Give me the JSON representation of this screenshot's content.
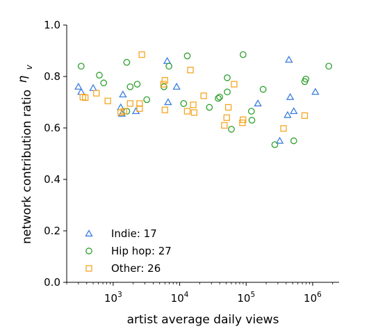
{
  "chart_data": {
    "type": "scatter",
    "xlabel": "artist average daily views",
    "ylabel": "network contribution ratio",
    "ylabel_symbol": "η",
    "ylabel_subscript": "v",
    "x_scale": "log",
    "xlim": [
      200,
      2500000
    ],
    "ylim": [
      0,
      1.0
    ],
    "x_ticks": [
      {
        "value": 1000,
        "base": "10",
        "exp": "3"
      },
      {
        "value": 10000,
        "base": "10",
        "exp": "4"
      },
      {
        "value": 100000,
        "base": "10",
        "exp": "5"
      },
      {
        "value": 1000000,
        "base": "10",
        "exp": "6"
      }
    ],
    "y_ticks": [
      {
        "value": 0.0,
        "label": "0.0"
      },
      {
        "value": 0.2,
        "label": "0.2"
      },
      {
        "value": 0.4,
        "label": "0.4"
      },
      {
        "value": 0.6,
        "label": "0.6"
      },
      {
        "value": 0.8,
        "label": "0.8"
      },
      {
        "value": 1.0,
        "label": "1.0"
      }
    ],
    "grid": false,
    "legend_position": "bottom-left",
    "series": [
      {
        "name": "Indie: 17",
        "marker": "triangle",
        "color": "#3b7ddd",
        "points": [
          {
            "x": 300,
            "y": 0.76
          },
          {
            "x": 330,
            "y": 0.74
          },
          {
            "x": 500,
            "y": 0.755
          },
          {
            "x": 1300,
            "y": 0.68
          },
          {
            "x": 1350,
            "y": 0.655
          },
          {
            "x": 1400,
            "y": 0.73
          },
          {
            "x": 2200,
            "y": 0.665
          },
          {
            "x": 6500,
            "y": 0.86
          },
          {
            "x": 6700,
            "y": 0.7
          },
          {
            "x": 9000,
            "y": 0.76
          },
          {
            "x": 150000,
            "y": 0.695
          },
          {
            "x": 320000,
            "y": 0.55
          },
          {
            "x": 420000,
            "y": 0.65
          },
          {
            "x": 440000,
            "y": 0.865
          },
          {
            "x": 460000,
            "y": 0.72
          },
          {
            "x": 520000,
            "y": 0.665
          },
          {
            "x": 1100000,
            "y": 0.74
          }
        ]
      },
      {
        "name": "Hip hop: 27",
        "marker": "circle",
        "color": "#2ca02c",
        "points": [
          {
            "x": 330,
            "y": 0.84
          },
          {
            "x": 620,
            "y": 0.805
          },
          {
            "x": 720,
            "y": 0.775
          },
          {
            "x": 1600,
            "y": 0.855
          },
          {
            "x": 1600,
            "y": 0.665
          },
          {
            "x": 1800,
            "y": 0.76
          },
          {
            "x": 2300,
            "y": 0.77
          },
          {
            "x": 3200,
            "y": 0.71
          },
          {
            "x": 5800,
            "y": 0.76
          },
          {
            "x": 6900,
            "y": 0.84
          },
          {
            "x": 11500,
            "y": 0.695
          },
          {
            "x": 13000,
            "y": 0.88
          },
          {
            "x": 28000,
            "y": 0.68
          },
          {
            "x": 38000,
            "y": 0.715
          },
          {
            "x": 40000,
            "y": 0.72
          },
          {
            "x": 52000,
            "y": 0.795
          },
          {
            "x": 52000,
            "y": 0.74
          },
          {
            "x": 60000,
            "y": 0.595
          },
          {
            "x": 90000,
            "y": 0.885
          },
          {
            "x": 120000,
            "y": 0.665
          },
          {
            "x": 122000,
            "y": 0.63
          },
          {
            "x": 180000,
            "y": 0.75
          },
          {
            "x": 270000,
            "y": 0.535
          },
          {
            "x": 520000,
            "y": 0.55
          },
          {
            "x": 760000,
            "y": 0.78
          },
          {
            "x": 790000,
            "y": 0.79
          },
          {
            "x": 1750000,
            "y": 0.84
          }
        ]
      },
      {
        "name": "Other: 26",
        "marker": "square",
        "color": "#f5a623",
        "points": [
          {
            "x": 350,
            "y": 0.72
          },
          {
            "x": 380,
            "y": 0.718
          },
          {
            "x": 560,
            "y": 0.735
          },
          {
            "x": 830,
            "y": 0.705
          },
          {
            "x": 1300,
            "y": 0.66
          },
          {
            "x": 1450,
            "y": 0.665
          },
          {
            "x": 1800,
            "y": 0.695
          },
          {
            "x": 2500,
            "y": 0.695
          },
          {
            "x": 2500,
            "y": 0.675
          },
          {
            "x": 2700,
            "y": 0.885
          },
          {
            "x": 5700,
            "y": 0.77
          },
          {
            "x": 6000,
            "y": 0.785
          },
          {
            "x": 6000,
            "y": 0.67
          },
          {
            "x": 13000,
            "y": 0.665
          },
          {
            "x": 14500,
            "y": 0.825
          },
          {
            "x": 16000,
            "y": 0.69
          },
          {
            "x": 16500,
            "y": 0.66
          },
          {
            "x": 23000,
            "y": 0.725
          },
          {
            "x": 47000,
            "y": 0.61
          },
          {
            "x": 51000,
            "y": 0.64
          },
          {
            "x": 54000,
            "y": 0.68
          },
          {
            "x": 66000,
            "y": 0.77
          },
          {
            "x": 88000,
            "y": 0.62
          },
          {
            "x": 90000,
            "y": 0.632
          },
          {
            "x": 365000,
            "y": 0.598
          },
          {
            "x": 760000,
            "y": 0.648
          }
        ]
      }
    ]
  }
}
